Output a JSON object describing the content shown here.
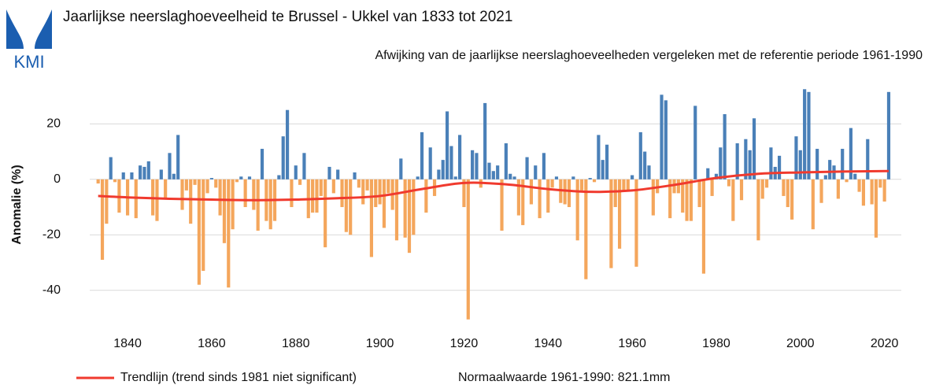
{
  "chart_data": {
    "type": "bar",
    "logo": "KMI",
    "title": "Jaarlijkse neerslaghoeveelheid te Brussel - Ukkel van 1833 tot 2021",
    "subtitle": "Afwijking van de jaarlijkse neerslaghoeveelheden vergeleken met de referentie periode 1961-1990",
    "y_label": "Anomalie (%)",
    "note": "Normaalwaarde 1961-1990: 821.1mm",
    "positive_color": "#4a80b8",
    "negative_color": "#f4a65c",
    "grid": true,
    "xlim": [
      1831,
      2024
    ],
    "xticks": [
      1840,
      1860,
      1880,
      1900,
      1920,
      1940,
      1960,
      1980,
      2000,
      2020
    ],
    "ylim": [
      -52,
      34
    ],
    "yticks": [
      -40,
      -20,
      0,
      20
    ],
    "x": [
      1833,
      1834,
      1835,
      1836,
      1837,
      1838,
      1839,
      1840,
      1841,
      1842,
      1843,
      1844,
      1845,
      1846,
      1847,
      1848,
      1849,
      1850,
      1851,
      1852,
      1853,
      1854,
      1855,
      1856,
      1857,
      1858,
      1859,
      1860,
      1861,
      1862,
      1863,
      1864,
      1865,
      1866,
      1867,
      1868,
      1869,
      1870,
      1871,
      1872,
      1873,
      1874,
      1875,
      1876,
      1877,
      1878,
      1879,
      1880,
      1881,
      1882,
      1883,
      1884,
      1885,
      1886,
      1887,
      1888,
      1889,
      1890,
      1891,
      1892,
      1893,
      1894,
      1895,
      1896,
      1897,
      1898,
      1899,
      1900,
      1901,
      1902,
      1903,
      1904,
      1905,
      1906,
      1907,
      1908,
      1909,
      1910,
      1911,
      1912,
      1913,
      1914,
      1915,
      1916,
      1917,
      1918,
      1919,
      1920,
      1921,
      1922,
      1923,
      1924,
      1925,
      1926,
      1927,
      1928,
      1929,
      1930,
      1931,
      1932,
      1933,
      1934,
      1935,
      1936,
      1937,
      1938,
      1939,
      1940,
      1941,
      1942,
      1943,
      1944,
      1945,
      1946,
      1947,
      1948,
      1949,
      1950,
      1951,
      1952,
      1953,
      1954,
      1955,
      1956,
      1957,
      1958,
      1959,
      1960,
      1961,
      1962,
      1963,
      1964,
      1965,
      1966,
      1967,
      1968,
      1969,
      1970,
      1971,
      1972,
      1973,
      1974,
      1975,
      1976,
      1977,
      1978,
      1979,
      1980,
      1981,
      1982,
      1983,
      1984,
      1985,
      1986,
      1987,
      1988,
      1989,
      1990,
      1991,
      1992,
      1993,
      1994,
      1995,
      1996,
      1997,
      1998,
      1999,
      2000,
      2001,
      2002,
      2003,
      2004,
      2005,
      2006,
      2007,
      2008,
      2009,
      2010,
      2011,
      2012,
      2013,
      2014,
      2015,
      2016,
      2017,
      2018,
      2019,
      2020,
      2021
    ],
    "values": [
      -1.5,
      -29,
      -16,
      8,
      -1,
      -12,
      2.5,
      -13,
      2.5,
      -14,
      5,
      4.5,
      6.5,
      -13,
      -15,
      3.5,
      -7,
      9.5,
      2,
      16,
      -11,
      -4,
      -16,
      -2,
      -38,
      -33,
      -5,
      0.5,
      -3,
      -13,
      -23,
      -39,
      -18,
      -1,
      1,
      -10,
      1,
      -11,
      -18.5,
      11,
      -15,
      -18,
      -15,
      1.5,
      15.5,
      25,
      -10,
      5,
      -2,
      9.5,
      -14,
      -12,
      -12,
      -6,
      -24.5,
      4.5,
      -5,
      3.5,
      -10,
      -19,
      -20,
      2.5,
      -3,
      -9,
      -4,
      -28,
      -10,
      -9,
      -17.5,
      -5,
      -11,
      -22,
      7.5,
      -21,
      -26.5,
      -20,
      1,
      17,
      -12,
      11.5,
      -6,
      3.5,
      7,
      24.5,
      12,
      1,
      16,
      -10,
      -50.5,
      10.5,
      9.5,
      -3,
      27.5,
      6,
      3,
      5,
      -18.5,
      13,
      2,
      1,
      -13,
      -16.5,
      8,
      -9,
      5,
      -14,
      9.5,
      -12,
      -3,
      1,
      -8.5,
      -9,
      -10,
      1,
      -22,
      -4,
      -36,
      0.5,
      -1,
      16,
      7,
      12.5,
      -32,
      -10,
      -25,
      -4.5,
      -4,
      1.5,
      -31.5,
      17,
      10,
      5,
      -13,
      -5,
      30.5,
      28.5,
      -14,
      -5,
      -5,
      -12,
      -15,
      -15,
      26.5,
      -10,
      -34,
      4,
      -6,
      2,
      11.5,
      23.5,
      -2.5,
      -15,
      13,
      -7.5,
      14.5,
      10.5,
      22,
      -22,
      -7,
      -3,
      11.5,
      4.5,
      8.5,
      -6,
      -10,
      -14.5,
      15.5,
      10.5,
      32.5,
      31.5,
      -18,
      11,
      -8.5,
      1.5,
      7,
      5,
      -7,
      11,
      -1,
      18.5,
      2,
      -4.5,
      -9.5,
      14.5,
      -9,
      -21,
      -3,
      -8,
      31.5
    ],
    "trend": {
      "name": "Trendlijn (trend sinds 1981 niet significant)",
      "color": "#f03a2e",
      "x": [
        1833,
        1840,
        1850,
        1860,
        1870,
        1880,
        1890,
        1900,
        1910,
        1920,
        1930,
        1940,
        1950,
        1960,
        1970,
        1980,
        1990,
        2000,
        2010,
        2021
      ],
      "values": [
        -6,
        -6.5,
        -7,
        -7.3,
        -7.5,
        -7.3,
        -6.8,
        -6,
        -3.5,
        -1.3,
        -1.8,
        -3.5,
        -4.5,
        -4,
        -2,
        0.5,
        2,
        2.5,
        2.8,
        3
      ]
    }
  }
}
